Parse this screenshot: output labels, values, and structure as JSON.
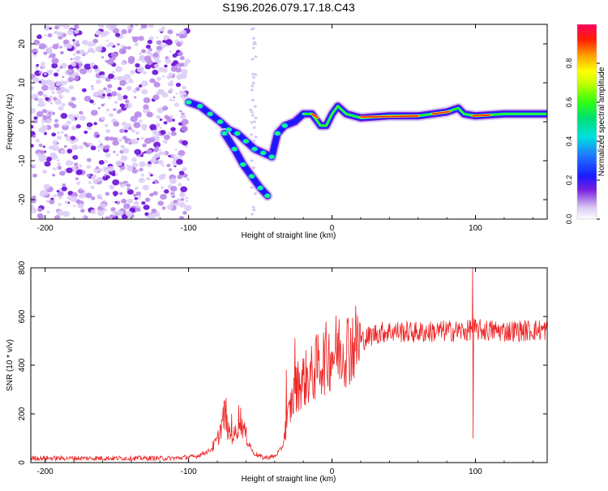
{
  "title": "S196.2026.079.17.18.C43",
  "chart_data": [
    {
      "type": "heatmap",
      "name": "spectrogram",
      "xlabel": "Height of straight line (km)",
      "ylabel": "Frequency (Hz)",
      "xlim": [
        -210,
        150
      ],
      "ylim": [
        -25,
        25
      ],
      "xticks": [
        -200,
        -100,
        0,
        100
      ],
      "yticks": [
        -20,
        -10,
        0,
        10,
        20
      ],
      "colorbar": {
        "label": "Normalized spectral amplitude",
        "range": [
          0,
          1
        ],
        "ticks": [
          "0.0",
          "0.2",
          "0.4",
          "0.6",
          "0.8"
        ],
        "tick_values": [
          0.0,
          0.2,
          0.4,
          0.6,
          0.8
        ]
      },
      "ridge": {
        "description_points": [
          [
            -100,
            5
          ],
          [
            -92,
            4
          ],
          [
            -85,
            2
          ],
          [
            -78,
            0
          ],
          [
            -72,
            -2
          ],
          [
            -66,
            -3
          ],
          [
            -60,
            -5
          ],
          [
            -54,
            -7
          ],
          [
            -48,
            -8
          ],
          [
            -42,
            -9
          ],
          [
            -38,
            -3
          ],
          [
            -33,
            -1
          ],
          [
            -26,
            0
          ],
          [
            -20,
            2
          ],
          [
            -14,
            2
          ],
          [
            -8,
            -1
          ],
          [
            -4,
            -1
          ],
          [
            0,
            2
          ],
          [
            4,
            4
          ],
          [
            10,
            2
          ],
          [
            20,
            1
          ],
          [
            40,
            1.5
          ],
          [
            60,
            1.5
          ],
          [
            80,
            2.5
          ],
          [
            88,
            3.5
          ],
          [
            92,
            2
          ],
          [
            100,
            1.5
          ],
          [
            120,
            2
          ],
          [
            150,
            2
          ]
        ],
        "branch_points": [
          [
            -75,
            -3
          ],
          [
            -68,
            -7
          ],
          [
            -62,
            -11
          ],
          [
            -56,
            -14
          ],
          [
            -50,
            -17
          ],
          [
            -45,
            -19
          ]
        ]
      },
      "noise_region_x": [
        -210,
        -100
      ]
    },
    {
      "type": "line",
      "name": "snr",
      "xlabel": "Height of straight line (km)",
      "ylabel": "SNR (10 * v/v)",
      "xlim": [
        -210,
        150
      ],
      "ylim": [
        0,
        800
      ],
      "xticks": [
        -200,
        -100,
        0,
        100
      ],
      "yticks": [
        0,
        200,
        400,
        600,
        800
      ],
      "color": "#ee2222",
      "envelope": [
        [
          -210,
          18
        ],
        [
          -110,
          18
        ],
        [
          -95,
          25
        ],
        [
          -85,
          50
        ],
        [
          -80,
          90
        ],
        [
          -75,
          200
        ],
        [
          -72,
          120
        ],
        [
          -68,
          110
        ],
        [
          -64,
          180
        ],
        [
          -60,
          110
        ],
        [
          -55,
          40
        ],
        [
          -48,
          20
        ],
        [
          -40,
          25
        ],
        [
          -35,
          60
        ],
        [
          -32,
          150
        ],
        [
          -28,
          250
        ],
        [
          -24,
          320
        ],
        [
          -20,
          340
        ],
        [
          -14,
          360
        ],
        [
          -10,
          400
        ],
        [
          -4,
          430
        ],
        [
          0,
          450
        ],
        [
          6,
          470
        ],
        [
          12,
          480
        ],
        [
          20,
          500
        ],
        [
          30,
          530
        ],
        [
          40,
          540
        ],
        [
          60,
          535
        ],
        [
          80,
          540
        ],
        [
          95,
          540
        ],
        [
          98,
          560
        ],
        [
          100,
          545
        ],
        [
          120,
          540
        ],
        [
          150,
          545
        ]
      ],
      "spikes": [
        [
          -74,
          265
        ],
        [
          -70,
          200
        ],
        [
          -65,
          235
        ],
        [
          -32,
          380
        ],
        [
          -26,
          510
        ],
        [
          98,
          800
        ],
        [
          98.5,
          100
        ]
      ]
    }
  ]
}
